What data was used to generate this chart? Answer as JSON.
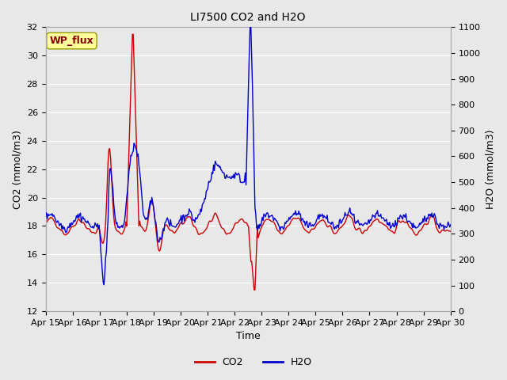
{
  "title": "LI7500 CO2 and H2O",
  "xlabel": "Time",
  "ylabel_left": "CO2 (mmol/m3)",
  "ylabel_right": "H2O (mmol/m3)",
  "co2_ylim": [
    12,
    32
  ],
  "h2o_ylim": [
    0,
    1100
  ],
  "co2_yticks": [
    12,
    14,
    16,
    18,
    20,
    22,
    24,
    26,
    28,
    30,
    32
  ],
  "h2o_yticks": [
    0,
    100,
    200,
    300,
    400,
    500,
    600,
    700,
    800,
    900,
    1000,
    1100
  ],
  "xtick_labels": [
    "Apr 15",
    "Apr 16",
    "Apr 17",
    "Apr 18",
    "Apr 19",
    "Apr 20",
    "Apr 21",
    "Apr 22",
    "Apr 23",
    "Apr 24",
    "Apr 25",
    "Apr 26",
    "Apr 27",
    "Apr 28",
    "Apr 29",
    "Apr 30"
  ],
  "co2_color": "#cc0000",
  "h2o_color": "#0000cc",
  "bg_color": "#e8e8e8",
  "plot_bg_color": "#e8e8e8",
  "annotation_text": "WP_flux",
  "annotation_color": "#8b0000",
  "annotation_bg": "#ffff99",
  "grid_color": "white",
  "legend_co2": "CO2",
  "legend_h2o": "H2O"
}
